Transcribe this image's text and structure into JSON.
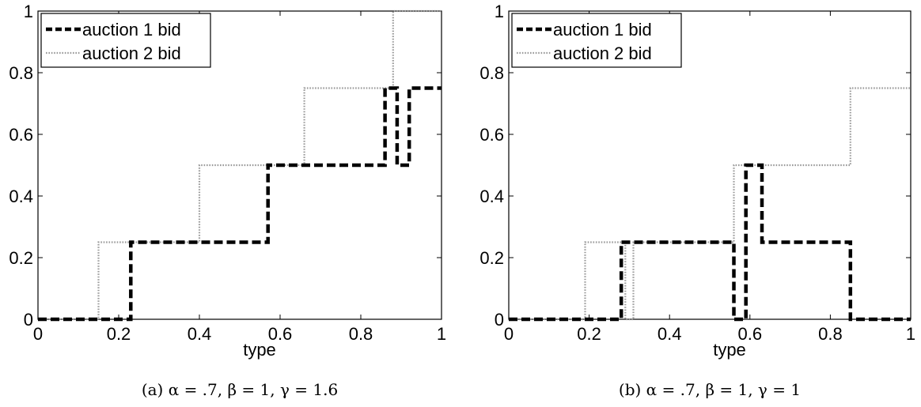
{
  "chart_data": [
    {
      "type": "line",
      "step": true,
      "caption": "(a) α = .7, β = 1, γ = 1.6",
      "xlabel": "type",
      "ylabel": "",
      "xlim": [
        0,
        1
      ],
      "ylim": [
        0,
        1
      ],
      "xticks": [
        "0",
        "0.2",
        "0.4",
        "0.6",
        "0.8",
        "1"
      ],
      "yticks": [
        "0",
        "0.2",
        "0.4",
        "0.6",
        "0.8",
        "1"
      ],
      "grid": false,
      "legend_position": "top-left",
      "series": [
        {
          "name": "auction 1 bid",
          "style": "dashed-thick",
          "color": "#000000",
          "points": [
            [
              0,
              0
            ],
            [
              0.23,
              0
            ],
            [
              0.23,
              0.25
            ],
            [
              0.57,
              0.25
            ],
            [
              0.57,
              0.5
            ],
            [
              0.86,
              0.5
            ],
            [
              0.86,
              0.75
            ],
            [
              0.89,
              0.75
            ],
            [
              0.89,
              0.5
            ],
            [
              0.92,
              0.5
            ],
            [
              0.92,
              0.75
            ],
            [
              1,
              0.75
            ]
          ]
        },
        {
          "name": "auction 2 bid",
          "style": "dotted",
          "color": "#9a9a9a",
          "points": [
            [
              0,
              0
            ],
            [
              0.15,
              0
            ],
            [
              0.15,
              0.25
            ],
            [
              0.4,
              0.25
            ],
            [
              0.4,
              0.5
            ],
            [
              0.66,
              0.5
            ],
            [
              0.66,
              0.75
            ],
            [
              0.88,
              0.75
            ],
            [
              0.88,
              1
            ],
            [
              1,
              1
            ]
          ]
        }
      ]
    },
    {
      "type": "line",
      "step": true,
      "caption": "(b) α = .7, β = 1, γ = 1",
      "xlabel": "type",
      "ylabel": "",
      "xlim": [
        0,
        1
      ],
      "ylim": [
        0,
        1
      ],
      "xticks": [
        "0",
        "0.2",
        "0.4",
        "0.6",
        "0.8",
        "1"
      ],
      "yticks": [
        "0",
        "0.2",
        "0.4",
        "0.6",
        "0.8",
        "1"
      ],
      "grid": false,
      "legend_position": "top-left",
      "series": [
        {
          "name": "auction 1 bid",
          "style": "dashed-thick",
          "color": "#000000",
          "points": [
            [
              0,
              0
            ],
            [
              0.28,
              0
            ],
            [
              0.28,
              0.25
            ],
            [
              0.56,
              0.25
            ],
            [
              0.56,
              0
            ],
            [
              0.59,
              0
            ],
            [
              0.59,
              0.5
            ],
            [
              0.63,
              0.5
            ],
            [
              0.63,
              0.25
            ],
            [
              0.85,
              0.25
            ],
            [
              0.85,
              0
            ],
            [
              1,
              0
            ]
          ]
        },
        {
          "name": "auction 2 bid",
          "style": "dotted",
          "color": "#9a9a9a",
          "points": [
            [
              0,
              0
            ],
            [
              0.19,
              0
            ],
            [
              0.19,
              0.25
            ],
            [
              0.29,
              0.25
            ],
            [
              0.29,
              0
            ],
            [
              0.31,
              0
            ],
            [
              0.31,
              0.25
            ],
            [
              0.56,
              0.25
            ],
            [
              0.56,
              0.5
            ],
            [
              0.85,
              0.5
            ],
            [
              0.85,
              0.75
            ],
            [
              1,
              0.75
            ]
          ]
        }
      ]
    }
  ]
}
